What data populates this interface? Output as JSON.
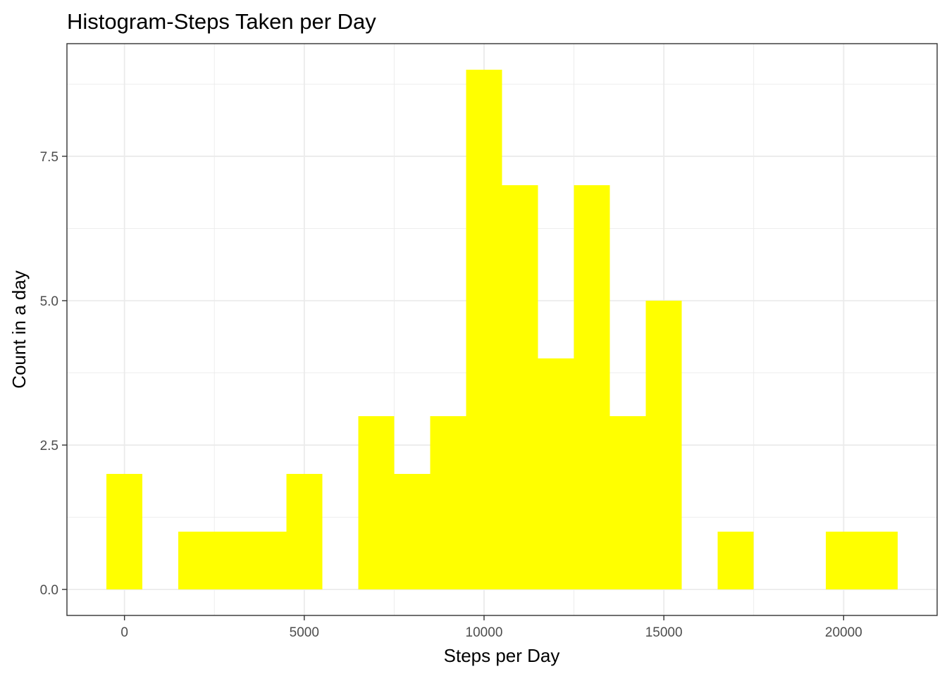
{
  "chart_data": {
    "type": "bar",
    "title": "Histogram-Steps Taken per Day",
    "xlabel": "Steps per Day",
    "ylabel": "Count in a day",
    "bin_width": 1000,
    "bins": [
      {
        "center": 0,
        "count": 2
      },
      {
        "center": 1000,
        "count": 0
      },
      {
        "center": 2000,
        "count": 1
      },
      {
        "center": 3000,
        "count": 1
      },
      {
        "center": 4000,
        "count": 1
      },
      {
        "center": 5000,
        "count": 2
      },
      {
        "center": 6000,
        "count": 0
      },
      {
        "center": 7000,
        "count": 3
      },
      {
        "center": 8000,
        "count": 2
      },
      {
        "center": 9000,
        "count": 3
      },
      {
        "center": 10000,
        "count": 9
      },
      {
        "center": 11000,
        "count": 7
      },
      {
        "center": 12000,
        "count": 4
      },
      {
        "center": 13000,
        "count": 7
      },
      {
        "center": 14000,
        "count": 3
      },
      {
        "center": 15000,
        "count": 5
      },
      {
        "center": 16000,
        "count": 0
      },
      {
        "center": 17000,
        "count": 1
      },
      {
        "center": 18000,
        "count": 0
      },
      {
        "center": 19000,
        "count": 0
      },
      {
        "center": 20000,
        "count": 1
      },
      {
        "center": 21000,
        "count": 1
      }
    ],
    "xlim": [
      -1600,
      22600
    ],
    "ylim": [
      -0.45,
      9.45
    ],
    "xticks": [
      0,
      5000,
      10000,
      15000,
      20000
    ],
    "xtick_labels": [
      "0",
      "5000",
      "10000",
      "15000",
      "20000"
    ],
    "yticks": [
      0,
      2.5,
      5,
      7.5
    ],
    "ytick_labels": [
      "0.0",
      "2.5",
      "5.0",
      "7.5"
    ],
    "grid": true,
    "fill_color": "#ffff00",
    "background": "#ffffff",
    "grid_color": "#ebebeb",
    "border_color": "#333333"
  }
}
